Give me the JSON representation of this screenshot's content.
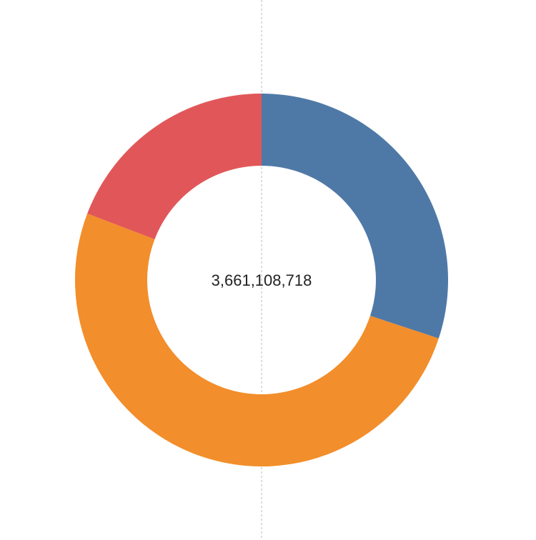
{
  "chart_data": {
    "type": "donut",
    "center_label": "3,661,108,718",
    "values": [
      1101000000,
      1857000000,
      703000000
    ],
    "colors": [
      "#4e79a7",
      "#f28e2b",
      "#e15759"
    ]
  }
}
